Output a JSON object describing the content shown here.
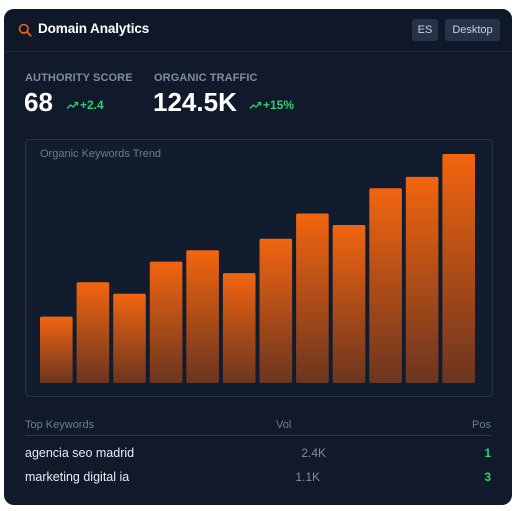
{
  "header": {
    "title": "Domain Analytics",
    "language": "ES",
    "device": "Desktop",
    "icon": "search-icon"
  },
  "metrics": [
    {
      "label": "AUTHORITY SCORE",
      "value": "68",
      "delta": "+2.4",
      "trend_icon": "trend-up-icon"
    },
    {
      "label": "ORGANIC TRAFFIC",
      "value": "124.5K",
      "delta": "+15%",
      "trend_icon": "trend-up-icon"
    }
  ],
  "chart_data": {
    "type": "bar",
    "title": "Organic Keywords Trend",
    "values": [
      29,
      44,
      39,
      53,
      58,
      48,
      63,
      74,
      69,
      85,
      90,
      100
    ],
    "ylim": [
      0,
      100
    ],
    "gradient_top": "#f2650f",
    "gradient_bottom": "#6b3520"
  },
  "keywords": {
    "headers": {
      "keyword": "Top Keywords",
      "volume": "Vol",
      "position": "Pos"
    },
    "rows": [
      {
        "keyword": "agencia seo madrid",
        "volume": "2.4K",
        "position": "1"
      },
      {
        "keyword": "marketing digital ia",
        "volume": "1.1K",
        "position": "3"
      }
    ]
  },
  "colors": {
    "background": "#101a2b",
    "accent": "#f2650f",
    "positive": "#2fcf70"
  }
}
